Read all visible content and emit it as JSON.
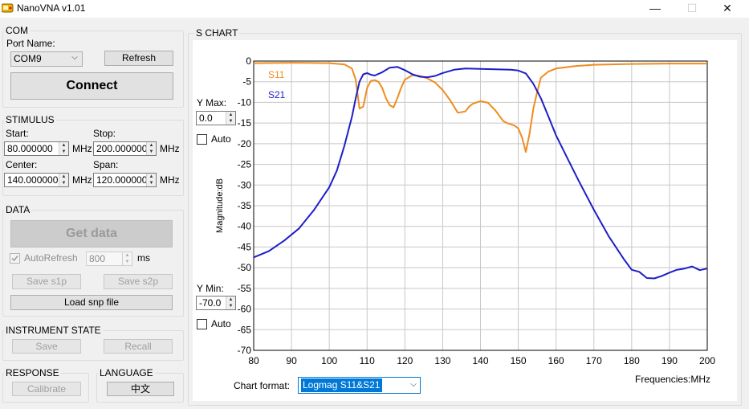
{
  "window": {
    "title": "NanoVNA v1.01",
    "minimize_icon": "minimize-icon",
    "maximize_icon": "maximize-icon",
    "close_icon": "close-icon",
    "minimize_glyph": "—",
    "maximize_glyph": "☐",
    "close_glyph": "✕"
  },
  "com": {
    "title": "COM",
    "port_label": "Port Name:",
    "port_value": "COM9",
    "refresh_label": "Refresh",
    "connect_label": "Connect"
  },
  "stimulus": {
    "title": "STIMULUS",
    "start_label": "Start:",
    "start_value": "80.000000",
    "stop_label": "Stop:",
    "stop_value": "200.000000",
    "center_label": "Center:",
    "center_value": "140.000000",
    "span_label": "Span:",
    "span_value": "120.000000",
    "unit": "MHz"
  },
  "data_group": {
    "title": "DATA",
    "get_data_label": "Get data",
    "autorefresh_label": "AutoRefresh",
    "autorefresh_checked": true,
    "interval_value": "800",
    "interval_unit": "ms",
    "save_s1p_label": "Save s1p",
    "save_s2p_label": "Save s2p",
    "load_snp_label": "Load snp file"
  },
  "instrument_state": {
    "title": "INSTRUMENT STATE",
    "save_label": "Save",
    "recall_label": "Recall"
  },
  "response": {
    "title": "RESPONSE",
    "calibrate_label": "Calibrate"
  },
  "language": {
    "title": "LANGUAGE",
    "button_label": "中文"
  },
  "s_chart": {
    "title": "S CHART",
    "ymax_label": "Y Max:",
    "ymax_value": "0.0",
    "ymin_label": "Y Min:",
    "ymin_value": "-70.0",
    "auto_label": "Auto",
    "chart_format_label": "Chart format:",
    "chart_format_value": "Logmag S11&S21",
    "frequencies_label": "Frequencies:MHz"
  },
  "chart_data": {
    "type": "line",
    "title": "",
    "xlabel": "Frequencies:MHz",
    "ylabel": "Magnitude:dB",
    "xlim": [
      80,
      200
    ],
    "ylim": [
      -70,
      0
    ],
    "xticks": [
      80,
      90,
      100,
      110,
      120,
      130,
      140,
      150,
      160,
      170,
      180,
      190,
      200
    ],
    "yticks": [
      0,
      -5,
      -10,
      -15,
      -20,
      -25,
      -30,
      -35,
      -40,
      -45,
      -50,
      -55,
      -60,
      -65,
      -70
    ],
    "grid": true,
    "legend": "top-left",
    "series": [
      {
        "name": "S11",
        "color": "#f08c1e",
        "x": [
          80,
          90,
          100,
          104,
          106,
          107,
          108,
          109,
          110,
          111,
          112,
          113,
          114,
          115,
          116,
          117,
          118,
          119,
          120,
          122,
          124,
          126,
          128,
          130,
          132,
          134,
          136,
          137,
          138,
          140,
          142,
          144,
          146,
          147,
          148,
          149,
          150,
          151,
          152,
          153,
          154,
          155,
          156,
          158,
          160,
          165,
          170,
          180,
          190,
          200
        ],
        "y": [
          -0.5,
          -0.4,
          -0.5,
          -0.8,
          -1.8,
          -4.5,
          -11.5,
          -11.0,
          -6.5,
          -4.8,
          -4.6,
          -5.0,
          -6.5,
          -9.0,
          -10.7,
          -11.2,
          -9.0,
          -6.5,
          -4.5,
          -3.4,
          -3.6,
          -4.2,
          -5.2,
          -7.0,
          -9.5,
          -12.5,
          -12.2,
          -11.0,
          -10.3,
          -9.7,
          -10.1,
          -12.0,
          -14.5,
          -15.0,
          -15.3,
          -15.6,
          -16.3,
          -18.5,
          -22.0,
          -17.5,
          -11.5,
          -7.5,
          -4.0,
          -2.5,
          -1.8,
          -1.2,
          -0.9,
          -0.7,
          -0.6,
          -0.6
        ]
      },
      {
        "name": "S21",
        "color": "#1e1ec8",
        "x": [
          80,
          84,
          88,
          92,
          96,
          100,
          102,
          104,
          106,
          107,
          108,
          109,
          110,
          111,
          112,
          114,
          116,
          118,
          120,
          122,
          124,
          126,
          128,
          130,
          133,
          136,
          140,
          144,
          148,
          150,
          152,
          154,
          156,
          158,
          160,
          163,
          166,
          170,
          174,
          178,
          180,
          182,
          184,
          186,
          188,
          190,
          192,
          194,
          196,
          198,
          200
        ],
        "y": [
          -47.5,
          -46.0,
          -43.5,
          -40.5,
          -36.0,
          -30.5,
          -26.5,
          -20.5,
          -13.5,
          -9.0,
          -5.0,
          -3.2,
          -2.9,
          -3.3,
          -3.5,
          -2.7,
          -1.6,
          -1.4,
          -2.2,
          -3.2,
          -3.8,
          -3.9,
          -3.6,
          -2.9,
          -2.1,
          -1.8,
          -1.9,
          -2.0,
          -2.1,
          -2.3,
          -3.0,
          -5.5,
          -9.0,
          -13.5,
          -18.0,
          -23.5,
          -29.0,
          -36.0,
          -42.5,
          -48.0,
          -50.5,
          -51.0,
          -52.5,
          -52.6,
          -52.0,
          -51.2,
          -50.5,
          -50.2,
          -49.7,
          -50.6,
          -50.2
        ]
      }
    ]
  }
}
